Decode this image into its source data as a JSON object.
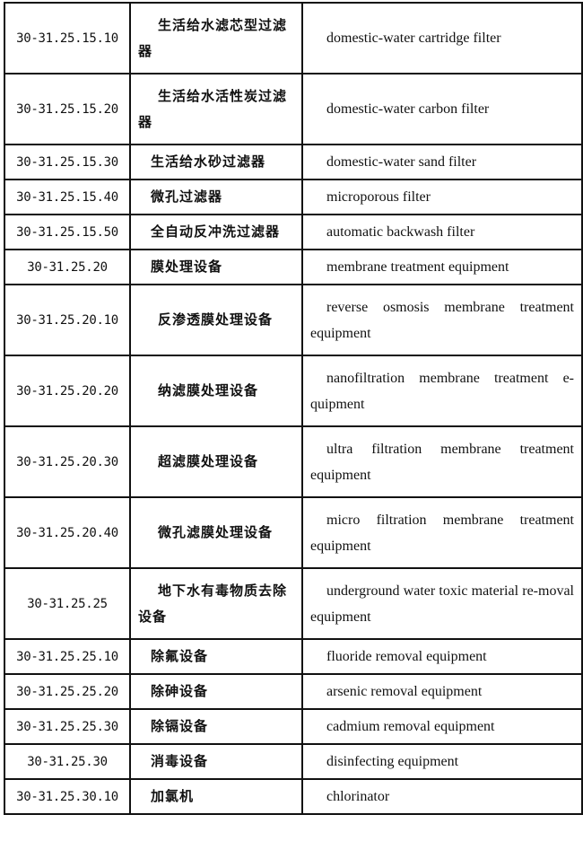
{
  "rows": [
    {
      "code": "30-31.25.15.10",
      "zh": "生活给水滤芯型过滤器",
      "en": "domestic-water cartridge filter",
      "tall": true
    },
    {
      "code": "30-31.25.15.20",
      "zh": "生活给水活性炭过滤器",
      "en": "domestic-water carbon filter",
      "tall": true
    },
    {
      "code": "30-31.25.15.30",
      "zh": "生活给水砂过滤器",
      "en": "domestic-water sand filter",
      "tall": false
    },
    {
      "code": "30-31.25.15.40",
      "zh": "微孔过滤器",
      "en": "microporous filter",
      "tall": false
    },
    {
      "code": "30-31.25.15.50",
      "zh": "全自动反冲洗过滤器",
      "en": "automatic backwash filter",
      "tall": false
    },
    {
      "code": "30-31.25.20",
      "zh": "膜处理设备",
      "en": "membrane treatment equipment",
      "tall": false
    },
    {
      "code": "30-31.25.20.10",
      "zh": "反渗透膜处理设备",
      "en": "reverse osmosis membrane treatment equipment",
      "tall": true
    },
    {
      "code": "30-31.25.20.20",
      "zh": "纳滤膜处理设备",
      "en": "nanofiltration membrane treatment e-quipment",
      "tall": true
    },
    {
      "code": "30-31.25.20.30",
      "zh": "超滤膜处理设备",
      "en": "ultra filtration membrane treatment equipment",
      "tall": true
    },
    {
      "code": "30-31.25.20.40",
      "zh": "微孔滤膜处理设备",
      "en": "micro filtration membrane treatment equipment",
      "tall": true
    },
    {
      "code": "30-31.25.25",
      "zh": "地下水有毒物质去除设备",
      "en": "underground water toxic material re-moval equipment",
      "tall": true
    },
    {
      "code": "30-31.25.25.10",
      "zh": "除氟设备",
      "en": "fluoride removal equipment",
      "tall": false
    },
    {
      "code": "30-31.25.25.20",
      "zh": "除砷设备",
      "en": "arsenic removal equipment",
      "tall": false
    },
    {
      "code": "30-31.25.25.30",
      "zh": "除镉设备",
      "en": "cadmium removal equipment",
      "tall": false
    },
    {
      "code": "30-31.25.30",
      "zh": "消毒设备",
      "en": "disinfecting equipment",
      "tall": false
    },
    {
      "code": "30-31.25.30.10",
      "zh": "加氯机",
      "en": "chlorinator",
      "tall": false
    }
  ]
}
